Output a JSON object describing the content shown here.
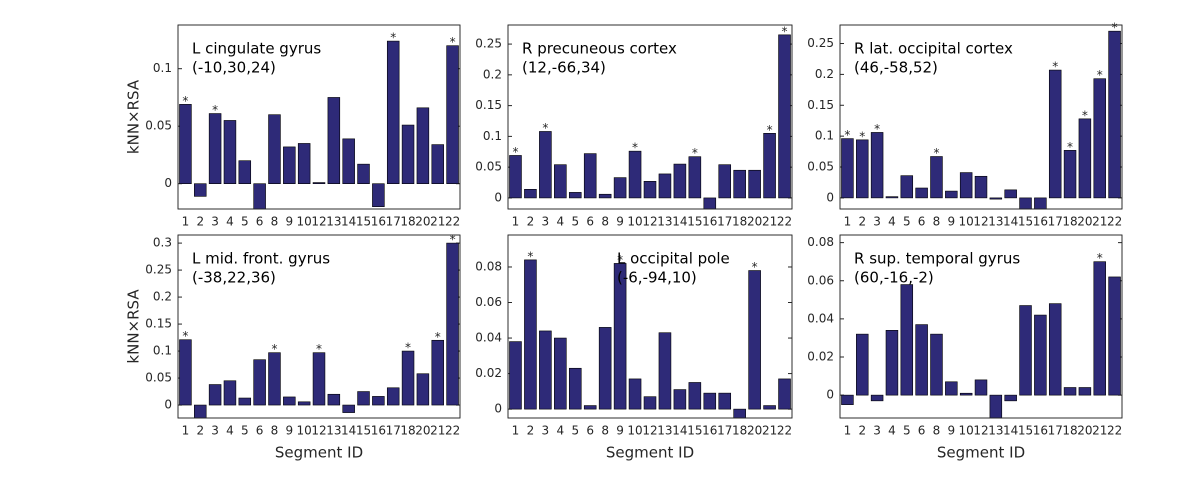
{
  "chart_data": [
    {
      "type": "bar",
      "title": "L cingulate gyrus",
      "subtitle": "(-10,30,24)",
      "ylabel": "kNN×RSA",
      "categories": [
        "1",
        "2",
        "3",
        "4",
        "5",
        "6",
        "8",
        "9",
        "10",
        "12",
        "13",
        "14",
        "15",
        "16",
        "17",
        "18",
        "20",
        "21",
        "22"
      ],
      "values": [
        0.069,
        -0.011,
        0.061,
        0.055,
        0.02,
        -0.022,
        0.06,
        0.032,
        0.035,
        0.001,
        0.075,
        0.039,
        0.017,
        -0.02,
        0.124,
        0.051,
        0.066,
        0.034,
        0.12
      ],
      "markers": [
        "*",
        null,
        "*",
        null,
        null,
        null,
        null,
        null,
        null,
        null,
        null,
        null,
        null,
        null,
        "*",
        null,
        null,
        null,
        "*"
      ],
      "color": "#2e2a78",
      "ylim": [
        -0.022,
        0.138
      ],
      "yticks": [
        0,
        0.05,
        0.1
      ]
    },
    {
      "type": "bar",
      "title": "R precuneous cortex",
      "subtitle": "(12,-66,34)",
      "categories": [
        "1",
        "2",
        "3",
        "4",
        "5",
        "6",
        "8",
        "9",
        "10",
        "12",
        "13",
        "14",
        "15",
        "16",
        "17",
        "18",
        "20",
        "21",
        "22"
      ],
      "values": [
        0.069,
        0.014,
        0.108,
        0.054,
        0.009,
        0.072,
        0.006,
        0.033,
        0.076,
        0.027,
        0.039,
        0.055,
        0.067,
        -0.018,
        0.054,
        0.045,
        0.045,
        0.105,
        0.265
      ],
      "markers": [
        "*",
        null,
        "*",
        null,
        null,
        null,
        null,
        null,
        "*",
        null,
        null,
        null,
        "*",
        null,
        null,
        null,
        null,
        "*",
        "*"
      ],
      "color": "#2e2a78",
      "ylim": [
        -0.018,
        0.281
      ],
      "yticks": [
        0,
        0.05,
        0.1,
        0.15,
        0.2,
        0.25
      ]
    },
    {
      "type": "bar",
      "title": "R lat. occipital cortex",
      "subtitle": "(46,-58,52)",
      "categories": [
        "1",
        "2",
        "3",
        "4",
        "5",
        "6",
        "8",
        "9",
        "10",
        "12",
        "13",
        "14",
        "15",
        "16",
        "17",
        "18",
        "20",
        "21",
        "22"
      ],
      "values": [
        0.096,
        0.094,
        0.106,
        0.002,
        0.036,
        0.016,
        0.067,
        0.011,
        0.041,
        0.035,
        -0.002,
        0.013,
        -0.018,
        -0.018,
        0.207,
        0.077,
        0.128,
        0.193,
        0.27
      ],
      "markers": [
        "*",
        "*",
        "*",
        null,
        null,
        null,
        "*",
        null,
        null,
        null,
        null,
        null,
        null,
        null,
        "*",
        "*",
        "*",
        "*",
        "*"
      ],
      "color": "#2e2a78",
      "ylim": [
        -0.018,
        0.28
      ],
      "yticks": [
        0,
        0.05,
        0.1,
        0.15,
        0.2,
        0.25
      ]
    },
    {
      "type": "bar",
      "title": "L mid. front. gyrus",
      "subtitle": "(-38,22,36)",
      "ylabel": "kNN×RSA",
      "xlabel": "Segment ID",
      "categories": [
        "1",
        "2",
        "3",
        "4",
        "5",
        "6",
        "8",
        "9",
        "10",
        "12",
        "13",
        "14",
        "15",
        "16",
        "17",
        "18",
        "20",
        "21",
        "22"
      ],
      "values": [
        0.121,
        -0.024,
        0.038,
        0.045,
        0.013,
        0.084,
        0.097,
        0.015,
        0.006,
        0.097,
        0.02,
        -0.014,
        0.025,
        0.016,
        0.032,
        0.1,
        0.058,
        0.12,
        0.3
      ],
      "markers": [
        "*",
        null,
        null,
        null,
        null,
        null,
        "*",
        null,
        null,
        "*",
        null,
        null,
        null,
        null,
        null,
        "*",
        null,
        "*",
        "*"
      ],
      "color": "#2e2a78",
      "ylim": [
        -0.024,
        0.315
      ],
      "yticks": [
        0,
        0.05,
        0.1,
        0.15,
        0.2,
        0.25,
        0.3
      ]
    },
    {
      "type": "bar",
      "title": "L occipital pole",
      "subtitle": "(-6,-94,10)",
      "xlabel": "Segment ID",
      "categories": [
        "1",
        "2",
        "3",
        "4",
        "5",
        "6",
        "8",
        "9",
        "10",
        "12",
        "13",
        "14",
        "15",
        "16",
        "17",
        "18",
        "20",
        "21",
        "22"
      ],
      "values": [
        0.038,
        0.084,
        0.044,
        0.04,
        0.023,
        0.002,
        0.046,
        0.082,
        0.017,
        0.007,
        0.043,
        0.011,
        0.015,
        0.009,
        0.009,
        -0.005,
        0.078,
        0.002,
        0.017
      ],
      "markers": [
        null,
        "*",
        null,
        null,
        null,
        null,
        null,
        "*",
        null,
        null,
        null,
        null,
        null,
        null,
        null,
        null,
        "*",
        null,
        null
      ],
      "color": "#2e2a78",
      "ylim": [
        -0.005,
        0.098
      ],
      "yticks": [
        0,
        0.02,
        0.04,
        0.06,
        0.08
      ]
    },
    {
      "type": "bar",
      "title": "R sup. temporal gyrus",
      "subtitle": "(60,-16,-2)",
      "xlabel": "Segment ID",
      "categories": [
        "1",
        "2",
        "3",
        "4",
        "5",
        "6",
        "8",
        "9",
        "10",
        "12",
        "13",
        "14",
        "15",
        "16",
        "17",
        "18",
        "20",
        "21",
        "22"
      ],
      "values": [
        -0.005,
        0.032,
        -0.003,
        0.034,
        0.058,
        0.037,
        0.032,
        0.007,
        0.001,
        0.008,
        -0.012,
        -0.003,
        0.047,
        0.042,
        0.048,
        0.004,
        0.004,
        0.07,
        0.062
      ],
      "markers": [
        null,
        null,
        null,
        null,
        null,
        null,
        null,
        null,
        null,
        null,
        null,
        null,
        null,
        null,
        null,
        null,
        null,
        "*",
        null
      ],
      "color": "#2e2a78",
      "ylim": [
        -0.012,
        0.084
      ],
      "yticks": [
        0,
        0.02,
        0.04,
        0.06,
        0.08
      ]
    }
  ]
}
